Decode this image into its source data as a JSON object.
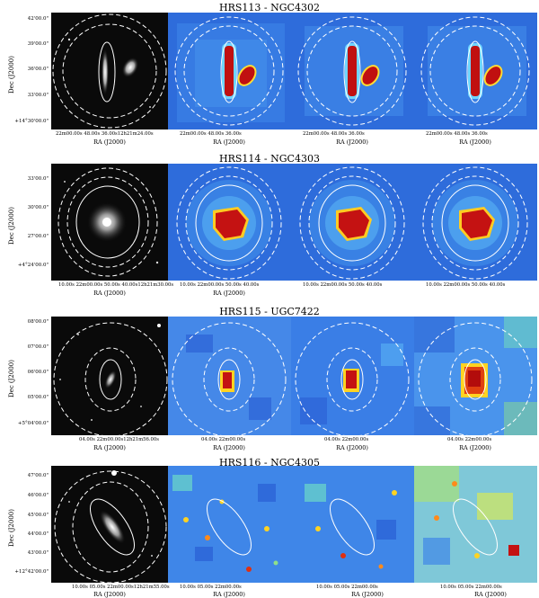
{
  "figure": {
    "axis": {
      "ra": "RA (J2000)",
      "dec": "Dec (J2000)"
    },
    "rows": [
      {
        "title": "HRS113 - NGC4302",
        "dec_ticks": [
          "42'00.0\"",
          "39'00.0\"",
          "36'00.0\"",
          "33'00.0\"",
          "+14°30'00.0\""
        ],
        "ra_ticks_optical": "22m00.00s   48.00s   36.00s12h21m24.00s",
        "ra_ticks_maps": "22m00.00s   48.00s   36.00s",
        "source": "elongated"
      },
      {
        "title": "HRS114 - NGC4303",
        "dec_ticks": [
          "33'00.0\"",
          "30'00.0\"",
          "27'00.0\"",
          "+4°24'00.0\""
        ],
        "ra_ticks_optical": "10.00s 22m00.00s 50.00s   40.00s12h21m30.00s",
        "ra_ticks_maps": "10.00s 22m00.00s 50.00s   40.00s",
        "source": "blob"
      },
      {
        "title": "HRS115 - UGC7422",
        "dec_ticks": [
          "08'00.0\"",
          "07'00.0\"",
          "06'00.0\"",
          "05'00.0\"",
          "+5°04'00.0\""
        ],
        "ra_ticks_optical": "04.00s  22m00.00s12h21m56.00s",
        "ra_ticks_maps": "04.00s  22m00.00s",
        "source": "small"
      },
      {
        "title": "HRS116 - NGC4305",
        "dec_ticks": [
          "47'00.0\"",
          "46'00.0\"",
          "45'00.0\"",
          "44'00.0\"",
          "43'00.0\"",
          "+12°42'00.0\""
        ],
        "ra_ticks_optical": "10.00s  05.00s 22m00.00s12h21m55.00s",
        "ra_ticks_maps": "10.00s  05.00s 22m00.00s",
        "source": "none"
      }
    ]
  }
}
